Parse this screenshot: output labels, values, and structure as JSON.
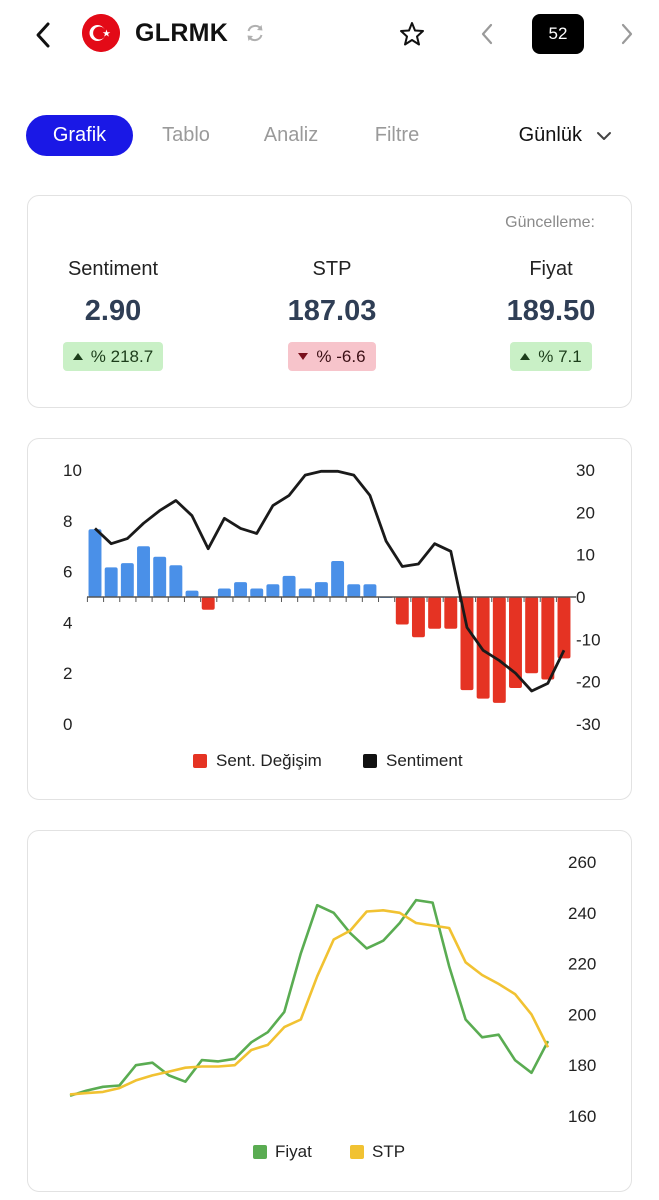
{
  "header": {
    "ticker": "GLRMK",
    "counter": "52",
    "icons": [
      "back-arrow-icon",
      "turkey-flag-icon",
      "refresh-icon",
      "star-icon",
      "chevron-left-icon",
      "chevron-right-icon"
    ]
  },
  "tabs": [
    {
      "label": "Grafik",
      "active": true
    },
    {
      "label": "Tablo",
      "active": false
    },
    {
      "label": "Analiz",
      "active": false
    },
    {
      "label": "Filtre",
      "active": false
    }
  ],
  "period": {
    "label": "Günlük"
  },
  "summary": {
    "update_label": "Güncelleme:",
    "metrics": [
      {
        "label": "Sentiment",
        "value": "2.90",
        "change": "% 218.7",
        "direction": "up"
      },
      {
        "label": "STP",
        "value": "187.03",
        "change": "% -6.6",
        "direction": "down"
      },
      {
        "label": "Fiyat",
        "value": "189.50",
        "change": "% 7.1",
        "direction": "up"
      }
    ]
  },
  "chart_data": [
    {
      "type": "bar",
      "left_axis": {
        "ticks": [
          "10",
          "8",
          "6",
          "4",
          "2",
          "0"
        ],
        "range": [
          0,
          10
        ]
      },
      "right_axis": {
        "ticks": [
          "30",
          "20",
          "10",
          "0",
          "-10",
          "-20",
          "-30"
        ],
        "range": [
          -30,
          30
        ]
      },
      "legend": [
        "Sent. Değişim",
        "Sentiment"
      ],
      "colors": {
        "positive": "#4a90e8",
        "negative": "#e53323",
        "line": "#1a1a1a"
      },
      "series": [
        {
          "name": "Sent. Değişim",
          "axis": "right",
          "values": [
            16,
            7,
            8,
            12,
            9.5,
            7.5,
            1.5,
            -3,
            2,
            3.5,
            2,
            3,
            5,
            2,
            3.5,
            8.5,
            3,
            3,
            0,
            -6.5,
            -9.5,
            -7.5,
            -7.5,
            -22,
            -24,
            -25,
            -21.5,
            -18,
            -19.5,
            -14.5
          ]
        },
        {
          "name": "Sentiment",
          "axis": "left",
          "values": [
            7.7,
            7.1,
            7.3,
            7.9,
            8.4,
            8.8,
            8.2,
            6.9,
            8.1,
            7.7,
            7.5,
            8.6,
            9.0,
            9.8,
            9.95,
            9.95,
            9.8,
            9.0,
            7.2,
            6.2,
            6.3,
            7.1,
            6.8,
            3.8,
            2.9,
            2.5,
            2.0,
            1.3,
            1.6,
            2.9
          ]
        }
      ]
    },
    {
      "type": "line",
      "right_axis": {
        "ticks": [
          "260",
          "240",
          "220",
          "200",
          "180",
          "160"
        ],
        "range": [
          160,
          260
        ]
      },
      "legend": [
        "Fiyat",
        "STP"
      ],
      "colors": {
        "Fiyat": "#5aac52",
        "STP": "#f1c232"
      },
      "series": [
        {
          "name": "Fiyat",
          "values": [
            168,
            170,
            171.5,
            172,
            180,
            181,
            176,
            173.5,
            182,
            181.5,
            182.5,
            189,
            193,
            201,
            224,
            243,
            240,
            232,
            226,
            229,
            236,
            245,
            244,
            219,
            198,
            191,
            192,
            182,
            177,
            189.5
          ]
        },
        {
          "name": "STP",
          "values": [
            168.5,
            169,
            169.5,
            171,
            174,
            176,
            177.5,
            179,
            179.5,
            179.5,
            180,
            186,
            188,
            195,
            198,
            215,
            229.5,
            233,
            240.5,
            241,
            240,
            236,
            235,
            234,
            220.5,
            215.5,
            212,
            208,
            200,
            187.03
          ]
        }
      ]
    }
  ]
}
